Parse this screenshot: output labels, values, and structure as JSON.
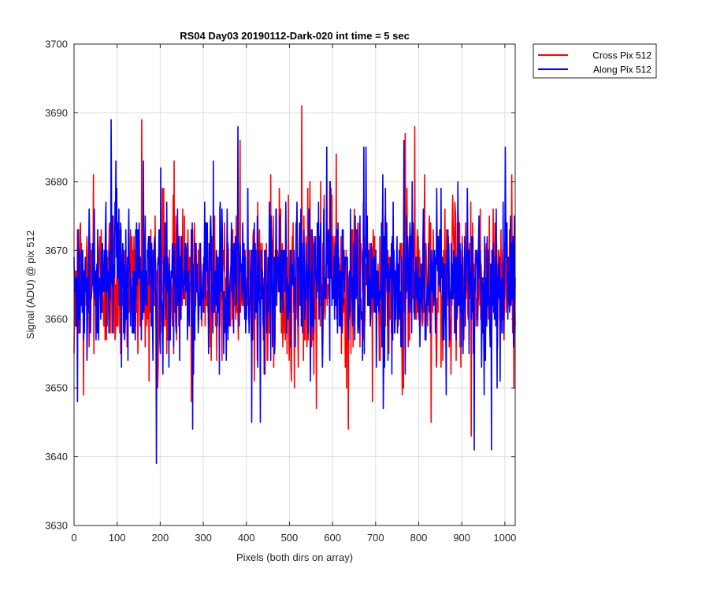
{
  "chart_data": {
    "type": "line",
    "title": "RS04 Day03 20190112-Dark-020 int time = 5 sec",
    "xlabel": "Pixels (both dirs on array)",
    "ylabel": "Signal (ADU) @ pix 512",
    "xlim": [
      0,
      1024
    ],
    "ylim": [
      3630,
      3700
    ],
    "xticks": [
      0,
      100,
      200,
      300,
      400,
      500,
      600,
      700,
      800,
      900,
      1000
    ],
    "yticks": [
      3630,
      3640,
      3650,
      3660,
      3670,
      3680,
      3690,
      3700
    ],
    "grid": true,
    "legend_position": "outside-top-right",
    "series": [
      {
        "name": "Cross Pix 512",
        "color": "#ff0000",
        "num_points": 1024,
        "mean": 3665.5,
        "std": 5.5,
        "min": 3643,
        "max": 3691,
        "highlights": [
          {
            "x": 0,
            "y": 3655
          },
          {
            "x": 22,
            "y": 3649
          },
          {
            "x": 45,
            "y": 3681
          },
          {
            "x": 157,
            "y": 3689
          },
          {
            "x": 232,
            "y": 3683
          },
          {
            "x": 272,
            "y": 3648
          },
          {
            "x": 385,
            "y": 3686
          },
          {
            "x": 528,
            "y": 3691
          },
          {
            "x": 562,
            "y": 3647
          },
          {
            "x": 608,
            "y": 3684
          },
          {
            "x": 636,
            "y": 3644
          },
          {
            "x": 768,
            "y": 3687
          },
          {
            "x": 790,
            "y": 3688
          },
          {
            "x": 828,
            "y": 3645
          },
          {
            "x": 921,
            "y": 3643
          },
          {
            "x": 1015,
            "y": 3681
          }
        ]
      },
      {
        "name": "Along Pix 512",
        "color": "#0000ff",
        "num_points": 1024,
        "mean": 3665.5,
        "std": 5.6,
        "min": 3639,
        "max": 3689,
        "highlights": [
          {
            "x": 8,
            "y": 3648
          },
          {
            "x": 86,
            "y": 3689
          },
          {
            "x": 97,
            "y": 3683
          },
          {
            "x": 191,
            "y": 3639
          },
          {
            "x": 201,
            "y": 3682
          },
          {
            "x": 275,
            "y": 3644
          },
          {
            "x": 380,
            "y": 3688
          },
          {
            "x": 412,
            "y": 3645
          },
          {
            "x": 432,
            "y": 3645
          },
          {
            "x": 586,
            "y": 3685
          },
          {
            "x": 672,
            "y": 3685
          },
          {
            "x": 765,
            "y": 3686
          },
          {
            "x": 928,
            "y": 3641
          },
          {
            "x": 968,
            "y": 3641
          },
          {
            "x": 1000,
            "y": 3685
          }
        ]
      }
    ]
  }
}
